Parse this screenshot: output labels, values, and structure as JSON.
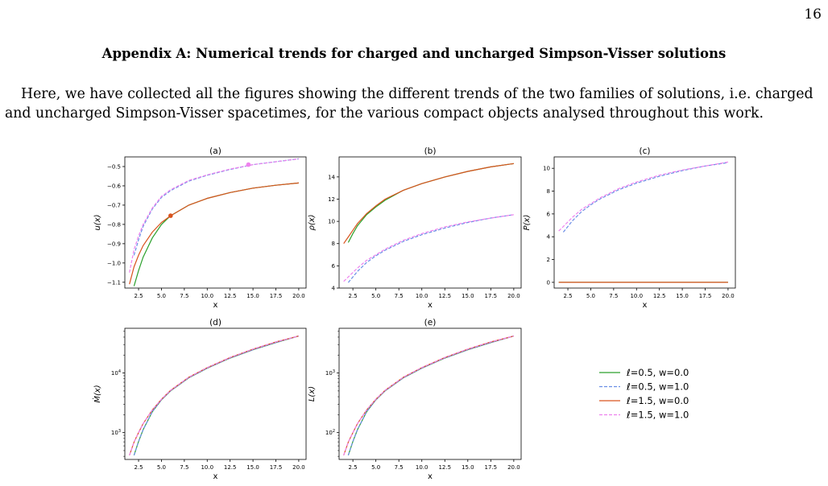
{
  "page": {
    "number": "16"
  },
  "section": {
    "title": "Appendix A: Numerical trends for charged and uncharged Simpson-Visser solutions"
  },
  "paragraph": {
    "text": "Here, we have collected all the figures showing the different trends of the two families of solutions, i.e. charged and uncharged Simpson-Visser spacetimes, for the various compact objects analysed throughout this work."
  },
  "legend": [
    {
      "label": "ℓ=0.5, w=0.0",
      "color": "#2ca02c",
      "dashed": false
    },
    {
      "label": "ℓ=0.5, w=1.0",
      "color": "#6a8ee6",
      "dashed": true
    },
    {
      "label": "ℓ=1.5, w=0.0",
      "color": "#d9531e",
      "dashed": false
    },
    {
      "label": "ℓ=1.5, w=1.0",
      "color": "#ee82ee",
      "dashed": true
    }
  ],
  "chart_data": [
    {
      "type": "line",
      "title": "(a)",
      "xlabel": "x",
      "ylabel": "u(x)",
      "xlim": [
        1.0,
        20.8
      ],
      "ylim": [
        -1.13,
        -0.45
      ],
      "xticks": [
        "2.5",
        "5.0",
        "7.5",
        "10.0",
        "12.5",
        "15.0",
        "17.5",
        "20.0"
      ],
      "yticks": [
        "−0.5",
        "−0.6",
        "−0.7",
        "−0.8",
        "−0.9",
        "−1.0",
        "−1.1"
      ],
      "x": [
        1.5,
        2.0,
        2.5,
        3.0,
        4.0,
        5.0,
        6.0,
        8.0,
        10.0,
        12.5,
        15.0,
        17.5,
        20.0
      ],
      "series": [
        {
          "name": "ℓ=0.5, w=0.0",
          "x0": 2.0,
          "values": [
            null,
            -1.12,
            -1.04,
            -0.97,
            -0.87,
            -0.8,
            -0.755,
            -0.7,
            -0.665,
            -0.635,
            -0.612,
            -0.597,
            -0.585
          ]
        },
        {
          "name": "ℓ=0.5, w=1.0",
          "x0": 1.7,
          "values": [
            null,
            -0.96,
            -0.88,
            -0.81,
            -0.72,
            -0.66,
            -0.625,
            -0.575,
            -0.545,
            -0.515,
            -0.49,
            -0.475,
            -0.46
          ]
        },
        {
          "name": "ℓ=1.5, w=0.0",
          "x0": 1.5,
          "values": [
            -1.11,
            -1.02,
            -0.96,
            -0.91,
            -0.84,
            -0.79,
            -0.755,
            -0.7,
            -0.665,
            -0.635,
            -0.612,
            -0.597,
            -0.585
          ]
        },
        {
          "name": "ℓ=1.5, w=1.0",
          "x0": 1.5,
          "values": [
            -1.05,
            -0.93,
            -0.86,
            -0.8,
            -0.715,
            -0.655,
            -0.62,
            -0.572,
            -0.543,
            -0.513,
            -0.49,
            -0.475,
            -0.46
          ]
        }
      ],
      "markers": [
        {
          "series": "ℓ=1.5, w=0.0",
          "x": 6.0,
          "y": -0.755
        },
        {
          "series": "ℓ=1.5, w=1.0",
          "x": 14.5,
          "y": -0.49
        }
      ]
    },
    {
      "type": "line",
      "title": "(b)",
      "xlabel": "x",
      "ylabel": "ρ(x)",
      "xlim": [
        1.0,
        20.8
      ],
      "ylim": [
        4.0,
        15.8
      ],
      "xticks": [
        "2.5",
        "5.0",
        "7.5",
        "10.0",
        "12.5",
        "15.0",
        "17.5",
        "20.0"
      ],
      "yticks": [
        "14",
        "12",
        "10",
        "8",
        "6",
        "4"
      ],
      "x": [
        1.5,
        2.0,
        2.5,
        3.0,
        4.0,
        5.0,
        6.0,
        8.0,
        10.0,
        12.5,
        15.0,
        17.5,
        20.0
      ],
      "series": [
        {
          "name": "ℓ=0.5, w=0.0",
          "values": [
            null,
            8.1,
            8.9,
            9.6,
            10.6,
            11.3,
            11.9,
            12.8,
            13.4,
            14.0,
            14.5,
            14.9,
            15.2
          ]
        },
        {
          "name": "ℓ=0.5, w=1.0",
          "values": [
            null,
            4.5,
            5.0,
            5.5,
            6.3,
            6.9,
            7.4,
            8.2,
            8.8,
            9.4,
            9.9,
            10.3,
            10.6
          ]
        },
        {
          "name": "ℓ=1.5, w=0.0",
          "values": [
            8.0,
            8.6,
            9.2,
            9.8,
            10.7,
            11.4,
            12.0,
            12.8,
            13.4,
            14.0,
            14.5,
            14.9,
            15.2
          ]
        },
        {
          "name": "ℓ=1.5, w=1.0",
          "values": [
            4.6,
            5.0,
            5.4,
            5.8,
            6.5,
            7.0,
            7.5,
            8.3,
            8.9,
            9.5,
            9.95,
            10.3,
            10.6
          ]
        }
      ]
    },
    {
      "type": "line",
      "title": "(c)",
      "xlabel": "x",
      "ylabel": "P(x)",
      "xlim": [
        1.0,
        20.8
      ],
      "ylim": [
        -0.5,
        11.0
      ],
      "xticks": [
        "2.5",
        "5.0",
        "7.5",
        "10.0",
        "12.5",
        "15.0",
        "17.5",
        "20.0"
      ],
      "yticks": [
        "10",
        "8",
        "6",
        "4",
        "2",
        "0"
      ],
      "x": [
        1.5,
        2.0,
        2.5,
        3.0,
        4.0,
        5.0,
        6.0,
        8.0,
        10.0,
        12.5,
        15.0,
        17.5,
        20.0
      ],
      "series": [
        {
          "name": "ℓ=0.5, w=0.0",
          "values": [
            0,
            0,
            0,
            0,
            0,
            0,
            0,
            0,
            0,
            0,
            0,
            0,
            0
          ]
        },
        {
          "name": "ℓ=0.5, w=1.0",
          "values": [
            null,
            4.4,
            4.9,
            5.4,
            6.2,
            6.8,
            7.3,
            8.1,
            8.7,
            9.3,
            9.8,
            10.2,
            10.5
          ]
        },
        {
          "name": "ℓ=1.5, w=0.0",
          "values": [
            0,
            0,
            0,
            0,
            0,
            0,
            0,
            0,
            0,
            0,
            0,
            0,
            0
          ]
        },
        {
          "name": "ℓ=1.5, w=1.0",
          "values": [
            4.5,
            4.9,
            5.3,
            5.7,
            6.4,
            6.9,
            7.4,
            8.2,
            8.8,
            9.4,
            9.85,
            10.2,
            10.55
          ]
        }
      ]
    },
    {
      "type": "line",
      "title": "(d)",
      "xlabel": "x",
      "ylabel": "Ṁ(x)",
      "yscale": "log",
      "xlim": [
        1.0,
        20.8
      ],
      "ylim_log10": [
        2.55,
        4.75
      ],
      "xticks": [
        "2.5",
        "5.0",
        "7.5",
        "10.0",
        "12.5",
        "15.0",
        "17.5",
        "20.0"
      ],
      "yticks": [
        {
          "base": "10",
          "exp": "4",
          "log10": 4
        },
        {
          "base": "10",
          "exp": "3",
          "log10": 3
        }
      ],
      "x": [
        1.5,
        2.0,
        2.5,
        3.0,
        4.0,
        5.0,
        6.0,
        8.0,
        10.0,
        12.5,
        15.0,
        17.5,
        20.0
      ],
      "series": [
        {
          "name": "ℓ=0.5, w=0.0",
          "values_log10": [
            null,
            2.62,
            2.85,
            3.05,
            3.35,
            3.55,
            3.7,
            3.92,
            4.08,
            4.25,
            4.39,
            4.51,
            4.62
          ]
        },
        {
          "name": "ℓ=0.5, w=1.0",
          "values_log10": [
            null,
            2.62,
            2.85,
            3.05,
            3.35,
            3.55,
            3.7,
            3.92,
            4.08,
            4.25,
            4.39,
            4.51,
            4.62
          ]
        },
        {
          "name": "ℓ=1.5, w=0.0",
          "values_log10": [
            2.62,
            2.84,
            3.0,
            3.15,
            3.38,
            3.56,
            3.71,
            3.93,
            4.09,
            4.26,
            4.4,
            4.52,
            4.62
          ]
        },
        {
          "name": "ℓ=1.5, w=1.0",
          "values_log10": [
            2.62,
            2.84,
            3.0,
            3.15,
            3.38,
            3.56,
            3.71,
            3.93,
            4.09,
            4.26,
            4.4,
            4.52,
            4.62
          ]
        }
      ]
    },
    {
      "type": "line",
      "title": "(e)",
      "xlabel": "x",
      "ylabel": "L(x)",
      "yscale": "log",
      "xlim": [
        1.0,
        20.8
      ],
      "ylim_log10": [
        1.55,
        3.75
      ],
      "xticks": [
        "2.5",
        "5.0",
        "7.5",
        "10.0",
        "12.5",
        "15.0",
        "17.5",
        "20.0"
      ],
      "yticks": [
        {
          "base": "10",
          "exp": "3",
          "log10": 3
        },
        {
          "base": "10",
          "exp": "2",
          "log10": 2
        }
      ],
      "x": [
        1.5,
        2.0,
        2.5,
        3.0,
        4.0,
        5.0,
        6.0,
        8.0,
        10.0,
        12.5,
        15.0,
        17.5,
        20.0
      ],
      "series": [
        {
          "name": "ℓ=0.5, w=0.0",
          "values_log10": [
            null,
            1.62,
            1.85,
            2.05,
            2.35,
            2.55,
            2.7,
            2.92,
            3.08,
            3.25,
            3.39,
            3.51,
            3.62
          ]
        },
        {
          "name": "ℓ=0.5, w=1.0",
          "values_log10": [
            null,
            1.62,
            1.85,
            2.05,
            2.35,
            2.55,
            2.7,
            2.92,
            3.08,
            3.25,
            3.39,
            3.51,
            3.62
          ]
        },
        {
          "name": "ℓ=1.5, w=0.0",
          "values_log10": [
            1.62,
            1.84,
            2.0,
            2.15,
            2.38,
            2.56,
            2.71,
            2.93,
            3.09,
            3.26,
            3.4,
            3.52,
            3.62
          ]
        },
        {
          "name": "ℓ=1.5, w=1.0",
          "values_log10": [
            1.62,
            1.84,
            2.0,
            2.15,
            2.38,
            2.56,
            2.71,
            2.93,
            3.09,
            3.26,
            3.4,
            3.52,
            3.62
          ]
        }
      ]
    }
  ]
}
